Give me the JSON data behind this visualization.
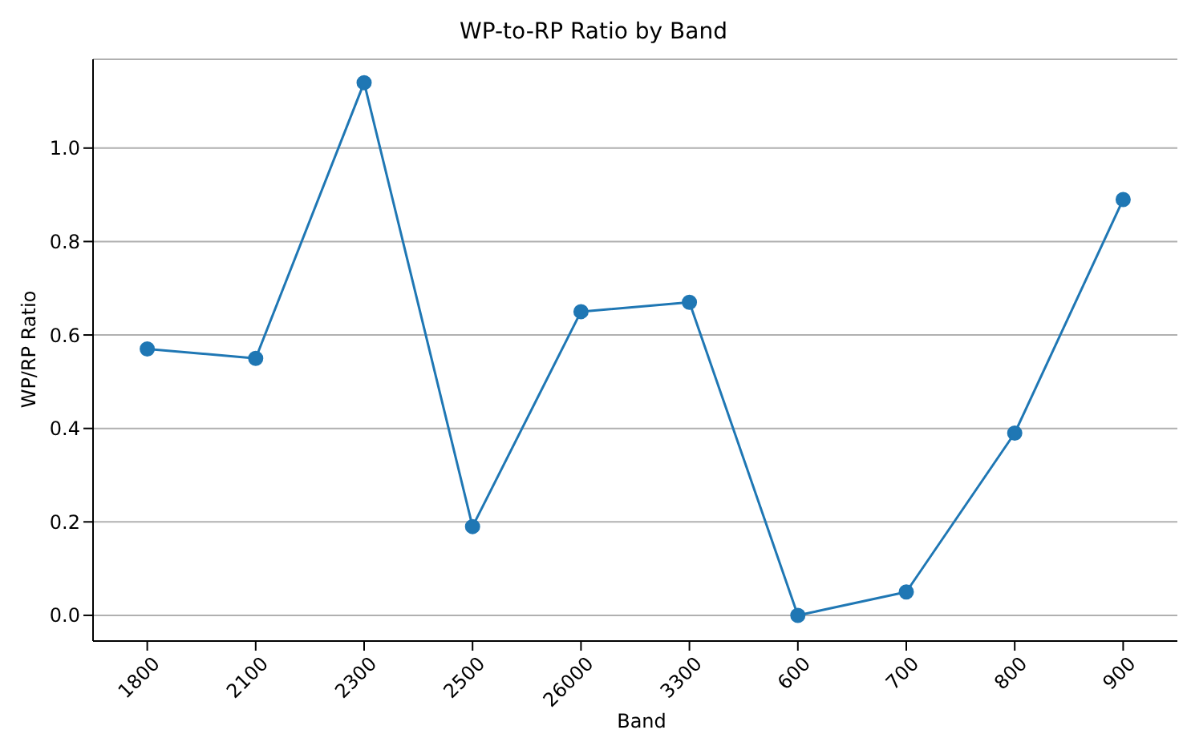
{
  "chart_data": {
    "type": "line",
    "title": "WP-to-RP Ratio by Band",
    "xlabel": "Band",
    "ylabel": "WP/RP Ratio",
    "categories": [
      "1800",
      "2100",
      "2300",
      "2500",
      "26000",
      "3300",
      "600",
      "700",
      "800",
      "900"
    ],
    "series": [
      {
        "color": "#1f77b4",
        "values": [
          0.57,
          0.55,
          1.14,
          0.19,
          0.65,
          0.67,
          0.0,
          0.05,
          0.39,
          0.89
        ]
      }
    ],
    "ylim": [
      -0.055,
      1.19
    ],
    "yticks": [
      {
        "value": 0,
        "label": "0.0"
      },
      {
        "value": 0.2,
        "label": "0.2"
      },
      {
        "value": 0.4,
        "label": "0.4"
      },
      {
        "value": 0.6,
        "label": "0.6"
      },
      {
        "value": 0.8,
        "label": "0.8"
      },
      {
        "value": 1,
        "label": "1.0"
      }
    ],
    "grid": "y",
    "marker": "circle",
    "line_style": "solid"
  }
}
